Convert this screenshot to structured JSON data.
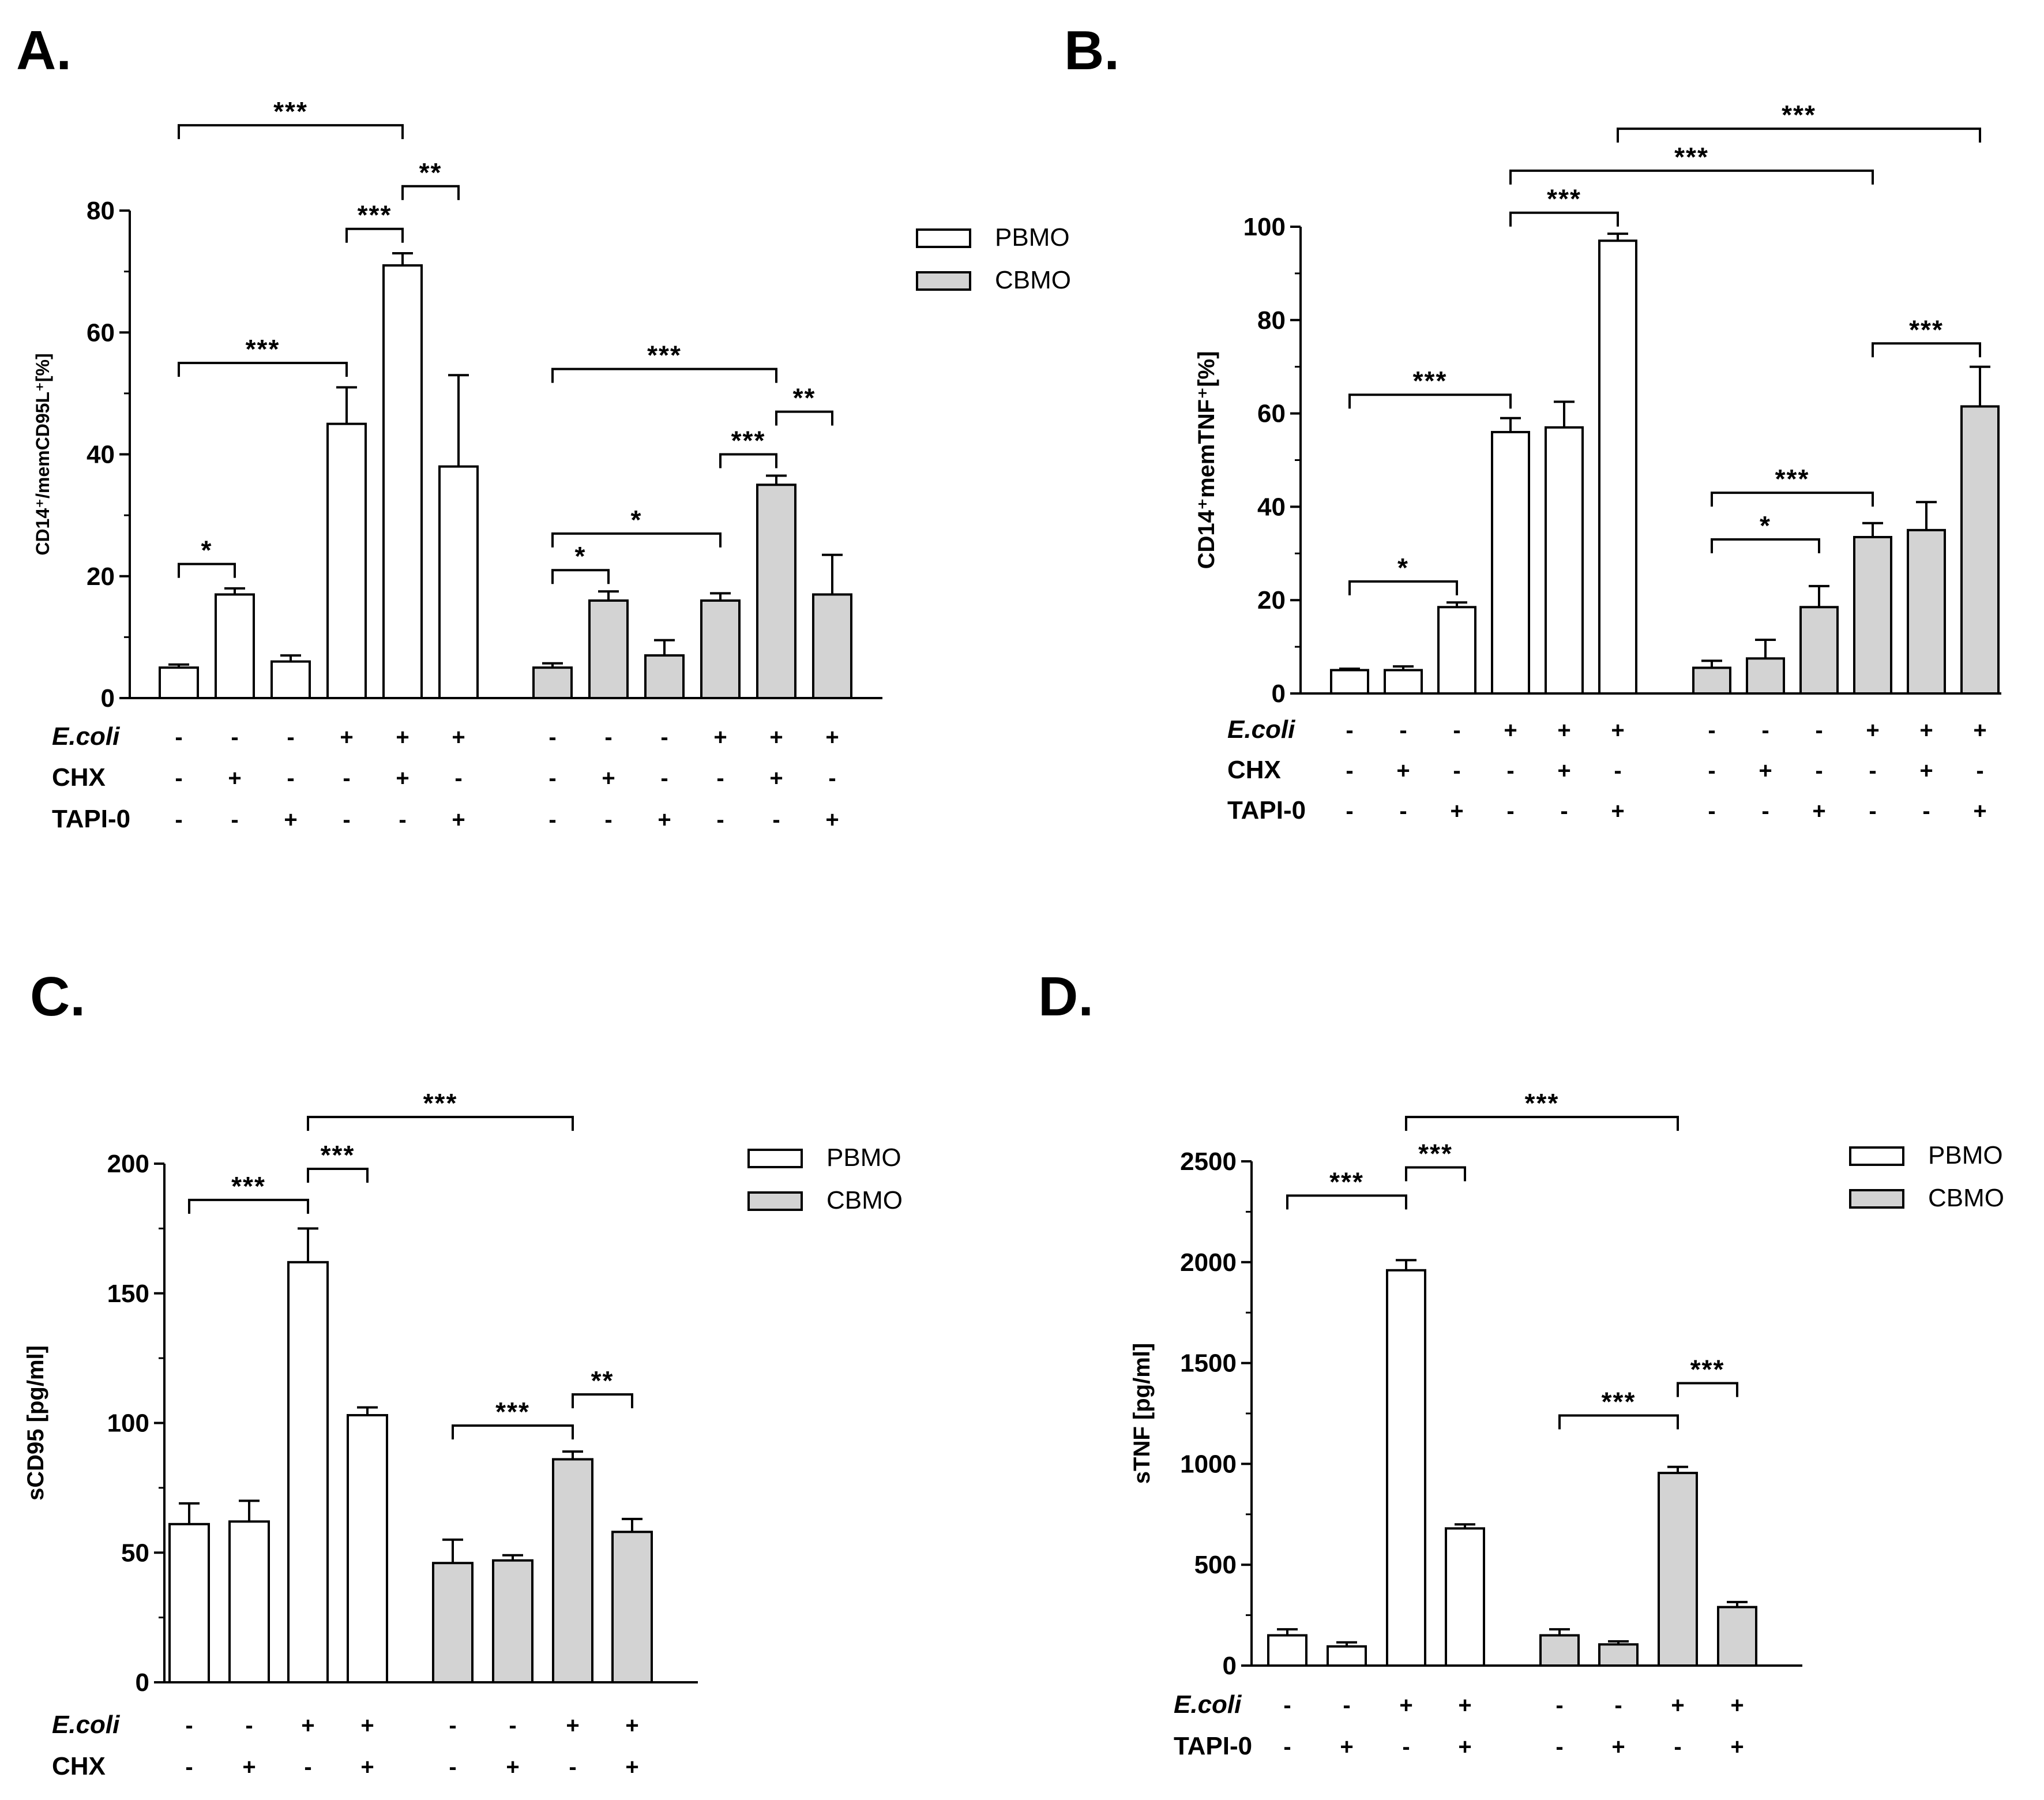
{
  "colors": {
    "pbmo": "#ffffff",
    "cbmo": "#d3d3d3",
    "stroke": "#000000"
  },
  "legend": {
    "pbmo": "PBMO",
    "cbmo": "CBMO"
  },
  "chart_data": [
    {
      "type": "bar",
      "panel": "A.",
      "title": "",
      "ylabel": "CD14⁺/memCD95L⁺[%]",
      "ylim": [
        0,
        80
      ],
      "yticks": [
        "0",
        "20",
        "40",
        "60",
        "80"
      ],
      "groups": [
        "PBMO",
        "CBMO"
      ],
      "series": [
        {
          "name": "PBMO",
          "values": [
            5,
            17,
            6,
            45,
            71,
            38
          ],
          "errors": [
            0.5,
            1,
            1,
            6,
            2,
            15
          ]
        },
        {
          "name": "CBMO",
          "values": [
            5,
            16,
            7,
            16,
            35,
            17
          ],
          "errors": [
            0.7,
            1.5,
            2.5,
            1.2,
            1.5,
            6.5
          ]
        }
      ],
      "conditions": [
        {
          "label": "E.coli",
          "italic": true,
          "marks": [
            "-",
            "-",
            "-",
            "+",
            "+",
            "+",
            "-",
            "-",
            "-",
            "+",
            "+",
            "+"
          ]
        },
        {
          "label": "CHX",
          "italic": false,
          "marks": [
            "-",
            "+",
            "-",
            "-",
            "+",
            "-",
            "-",
            "+",
            "-",
            "-",
            "+",
            "-"
          ]
        },
        {
          "label": "TAPI-0",
          "italic": false,
          "marks": [
            "-",
            "-",
            "+",
            "-",
            "-",
            "+",
            "-",
            "-",
            "+",
            "-",
            "-",
            "+"
          ]
        }
      ],
      "significance": [
        {
          "from": 0,
          "to": 4,
          "level": 94,
          "label": "***"
        },
        {
          "from": 4,
          "to": 5,
          "level": 84,
          "label": "**"
        },
        {
          "from": 3,
          "to": 4,
          "level": 77,
          "label": "***"
        },
        {
          "from": 0,
          "to": 3,
          "level": 55,
          "label": "***"
        },
        {
          "from": 0,
          "to": 1,
          "level": 22,
          "label": "*"
        },
        {
          "from": 6,
          "to": 10,
          "level": 54,
          "label": "***"
        },
        {
          "from": 10,
          "to": 11,
          "level": 47,
          "label": "**"
        },
        {
          "from": 9,
          "to": 10,
          "level": 40,
          "label": "***"
        },
        {
          "from": 6,
          "to": 9,
          "level": 27,
          "label": "*"
        },
        {
          "from": 6,
          "to": 7,
          "level": 21,
          "label": "*"
        }
      ],
      "legend": true
    },
    {
      "type": "bar",
      "panel": "B.",
      "title": "",
      "ylabel": "CD14⁺memTNF⁺[%]",
      "ylim": [
        0,
        100
      ],
      "yticks": [
        "0",
        "20",
        "40",
        "60",
        "80",
        "100"
      ],
      "groups": [
        "PBMO",
        "CBMO"
      ],
      "series": [
        {
          "name": "PBMO",
          "values": [
            5,
            5,
            18.5,
            56,
            57,
            97
          ],
          "errors": [
            0.3,
            0.8,
            1,
            3,
            5.5,
            1.5
          ]
        },
        {
          "name": "CBMO",
          "values": [
            5.5,
            7.5,
            18.5,
            33.5,
            35,
            61.5
          ],
          "errors": [
            1.5,
            4,
            4.5,
            3,
            6,
            8.5
          ]
        }
      ],
      "conditions": [
        {
          "label": "E.coli",
          "italic": true,
          "marks": [
            "-",
            "-",
            "-",
            "+",
            "+",
            "+",
            "-",
            "-",
            "-",
            "+",
            "+",
            "+"
          ]
        },
        {
          "label": "CHX",
          "italic": false,
          "marks": [
            "-",
            "+",
            "-",
            "-",
            "+",
            "-",
            "-",
            "+",
            "-",
            "-",
            "+",
            "-"
          ]
        },
        {
          "label": "TAPI-0",
          "italic": false,
          "marks": [
            "-",
            "-",
            "+",
            "-",
            "-",
            "+",
            "-",
            "-",
            "+",
            "-",
            "-",
            "+"
          ]
        }
      ],
      "significance": [
        {
          "from": 5,
          "to": 11,
          "level": 121,
          "label": "***"
        },
        {
          "from": 3,
          "to": 9,
          "level": 112,
          "label": "***"
        },
        {
          "from": 3,
          "to": 5,
          "level": 103,
          "label": "***"
        },
        {
          "from": 0,
          "to": 3,
          "level": 64,
          "label": "***"
        },
        {
          "from": 0,
          "to": 2,
          "level": 24,
          "label": "*"
        },
        {
          "from": 9,
          "to": 11,
          "level": 75,
          "label": "***"
        },
        {
          "from": 6,
          "to": 9,
          "level": 43,
          "label": "***"
        },
        {
          "from": 6,
          "to": 8,
          "level": 33,
          "label": "*"
        }
      ],
      "legend": false
    },
    {
      "type": "bar",
      "panel": "C.",
      "title": "",
      "ylabel": "sCD95 [pg/ml]",
      "ylim": [
        0,
        200
      ],
      "yticks": [
        "0",
        "50",
        "100",
        "150",
        "200"
      ],
      "groups": [
        "PBMO",
        "CBMO"
      ],
      "series": [
        {
          "name": "PBMO",
          "values": [
            61,
            62,
            162,
            103
          ],
          "errors": [
            8,
            8,
            13,
            3
          ]
        },
        {
          "name": "CBMO",
          "values": [
            46,
            47,
            86,
            58
          ],
          "errors": [
            9,
            2,
            3,
            5
          ]
        }
      ],
      "conditions": [
        {
          "label": "E.coli",
          "italic": true,
          "marks": [
            "-",
            "-",
            "+",
            "+",
            "-",
            "-",
            "+",
            "+"
          ]
        },
        {
          "label": "CHX",
          "italic": false,
          "marks": [
            "-",
            "+",
            "-",
            "+",
            "-",
            "+",
            "-",
            "+"
          ]
        }
      ],
      "significance": [
        {
          "from": 2,
          "to": 6,
          "level": 218,
          "label": "***"
        },
        {
          "from": 0,
          "to": 2,
          "level": 186,
          "label": "***"
        },
        {
          "from": 2,
          "to": 3,
          "level": 198,
          "label": "***"
        },
        {
          "from": 4,
          "to": 6,
          "level": 99,
          "label": "***"
        },
        {
          "from": 6,
          "to": 7,
          "level": 111,
          "label": "**"
        }
      ],
      "legend": true
    },
    {
      "type": "bar",
      "panel": "D.",
      "title": "",
      "ylabel": "sTNF [pg/ml]",
      "ylim": [
        0,
        2500
      ],
      "yticks": [
        "0",
        "500",
        "1000",
        "1500",
        "2000",
        "2500"
      ],
      "groups": [
        "PBMO",
        "CBMO"
      ],
      "series": [
        {
          "name": "PBMO",
          "values": [
            150,
            95,
            1960,
            680
          ],
          "errors": [
            30,
            20,
            50,
            20
          ]
        },
        {
          "name": "CBMO",
          "values": [
            150,
            105,
            955,
            290
          ],
          "errors": [
            30,
            15,
            30,
            25
          ]
        }
      ],
      "conditions": [
        {
          "label": "E.coli",
          "italic": true,
          "marks": [
            "-",
            "-",
            "+",
            "+",
            "-",
            "-",
            "+",
            "+"
          ]
        },
        {
          "label": "TAPI-0",
          "italic": false,
          "marks": [
            "-",
            "+",
            "-",
            "+",
            "-",
            "+",
            "-",
            "+"
          ]
        }
      ],
      "significance": [
        {
          "from": 2,
          "to": 6,
          "level": 2720,
          "label": "***"
        },
        {
          "from": 0,
          "to": 2,
          "level": 2330,
          "label": "***"
        },
        {
          "from": 2,
          "to": 3,
          "level": 2470,
          "label": "***"
        },
        {
          "from": 4,
          "to": 6,
          "level": 1240,
          "label": "***"
        },
        {
          "from": 6,
          "to": 7,
          "level": 1400,
          "label": "***"
        }
      ],
      "legend": true
    }
  ]
}
